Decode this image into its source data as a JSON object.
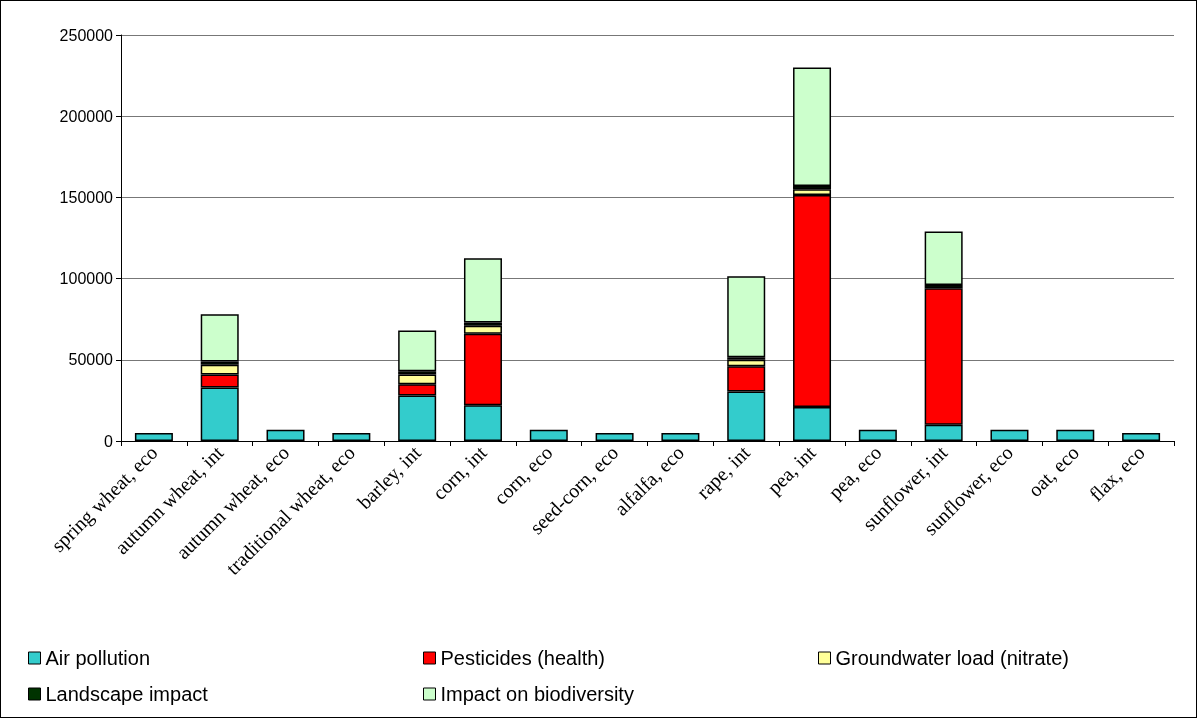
{
  "chart_data": {
    "type": "bar",
    "stacked": true,
    "categories": [
      "spring wheat, eco",
      "autumn wheat, int",
      "autumn wheat, eco",
      "traditional wheat, eco",
      "barley, int",
      "corn, int",
      "corn, eco",
      "seed-corn, eco",
      "alfalfa, eco",
      "rape, int",
      "pea, int",
      "pea, eco",
      "sunflower, int",
      "sunflower, eco",
      "oat, eco",
      "flax, eco"
    ],
    "series": [
      {
        "name": "Air pollution",
        "color": "#33cccc",
        "values": [
          5000,
          33000,
          7000,
          5000,
          28000,
          22000,
          7000,
          5000,
          5000,
          30500,
          21000,
          7000,
          10000,
          7000,
          7000,
          5000
        ]
      },
      {
        "name": "Pesticides (health)",
        "color": "#ff0000",
        "values": [
          null,
          8000,
          null,
          null,
          7000,
          44000,
          null,
          null,
          null,
          15500,
          130500,
          null,
          84000,
          null,
          null,
          null
        ]
      },
      {
        "name": "Groundwater load (nitrate)",
        "color": "#ffff99",
        "values": [
          null,
          6000,
          null,
          null,
          6000,
          5000,
          null,
          null,
          null,
          4000,
          3500,
          null,
          null,
          null,
          null,
          null
        ]
      },
      {
        "name": "Landscape impact",
        "color": "#003300",
        "values": [
          null,
          2000,
          null,
          null,
          2000,
          2000,
          null,
          null,
          null,
          1500,
          2000,
          null,
          2000,
          null,
          null,
          null
        ]
      },
      {
        "name": "Impact on biodiversity",
        "color": "#ccffcc",
        "values": [
          null,
          29000,
          null,
          null,
          25000,
          39500,
          null,
          null,
          null,
          50000,
          73000,
          null,
          33000,
          null,
          null,
          null
        ]
      }
    ],
    "ylim": [
      0,
      250000
    ],
    "yticks": [
      0,
      50000,
      100000,
      150000,
      200000,
      250000
    ],
    "grid": "y",
    "legend": "bottom"
  }
}
